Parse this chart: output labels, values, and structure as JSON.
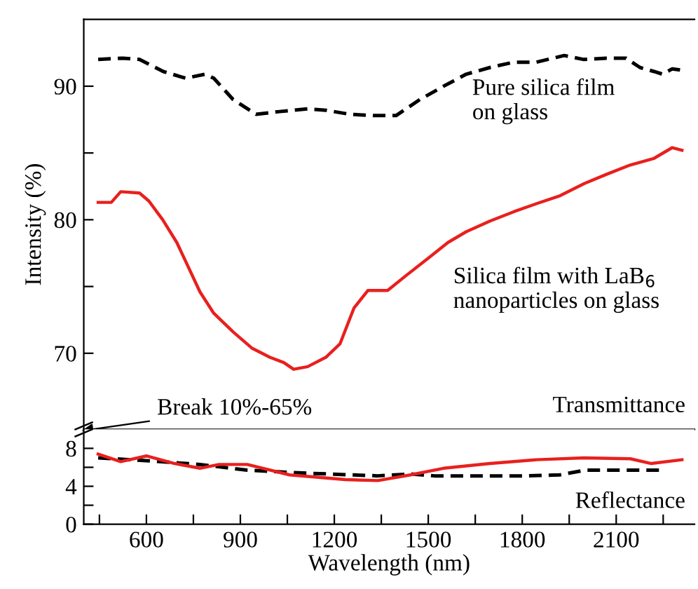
{
  "chart_data": [
    {
      "type": "line",
      "ylabel": "Intensity (%)",
      "xlim": [
        400,
        2350
      ],
      "ylim": [
        64.3,
        95
      ],
      "yticks": [
        {
          "value": 70,
          "label": "70"
        },
        {
          "value": 75,
          "label": null
        },
        {
          "value": 80,
          "label": "80"
        },
        {
          "value": 85,
          "label": null
        },
        {
          "value": 90,
          "label": "90"
        }
      ],
      "tick_labels": "y",
      "grid": false,
      "legend": false,
      "series": [
        {
          "color": "#000000",
          "line_style": "dashed",
          "x": [
            446,
            524,
            578,
            654,
            725,
            788,
            815,
            877,
            950,
            1025,
            1115,
            1173,
            1249,
            1325,
            1397,
            1473,
            1549,
            1621,
            1697,
            1773,
            1845,
            1934,
            1997,
            2069,
            2131,
            2176,
            2221,
            2248,
            2279,
            2310
          ],
          "values": [
            92.0,
            92.1,
            92.0,
            91.1,
            90.6,
            90.9,
            90.6,
            89.0,
            87.9,
            88.1,
            88.3,
            88.2,
            87.9,
            87.8,
            87.8,
            89.0,
            90.0,
            90.9,
            91.4,
            91.8,
            91.8,
            92.3,
            92.0,
            92.1,
            92.1,
            91.4,
            91.1,
            90.9,
            91.3,
            91.2
          ]
        },
        {
          "color": "#e8201e",
          "line_style": "solid",
          "x": [
            446,
            488,
            518,
            578,
            608,
            652,
            697,
            725,
            771,
            815,
            877,
            936,
            994,
            1039,
            1070,
            1115,
            1173,
            1218,
            1263,
            1307,
            1370,
            1428,
            1504,
            1563,
            1621,
            1697,
            1773,
            1845,
            1921,
            1997,
            2069,
            2145,
            2221,
            2279,
            2310
          ],
          "values": [
            81.3,
            81.3,
            82.1,
            82.0,
            81.4,
            80.0,
            78.3,
            76.9,
            74.6,
            73.0,
            71.6,
            70.4,
            69.7,
            69.3,
            68.8,
            69.0,
            69.7,
            70.7,
            73.4,
            74.7,
            74.7,
            75.8,
            77.2,
            78.3,
            79.1,
            79.9,
            80.6,
            81.2,
            81.8,
            82.7,
            83.4,
            84.1,
            84.6,
            85.4,
            85.2
          ]
        }
      ],
      "annotations": [
        "Pure silica film\non glass",
        "Silica film with LaB$_{6}$\nnanoparticles on glass",
        "Break 10%-65%",
        "Transmittance"
      ]
    },
    {
      "type": "line",
      "xlabel": "Wavelength (nm)",
      "xlim": [
        400,
        2350
      ],
      "ylim": [
        0,
        10
      ],
      "yticks": [
        0,
        {
          "value": 2,
          "label": null
        },
        4,
        {
          "value": 6,
          "label": null
        },
        8
      ],
      "xticks": [
        {
          "value": 450,
          "label": null
        },
        600,
        {
          "value": 750,
          "label": null
        },
        900,
        {
          "value": 1050,
          "label": null
        },
        1200,
        {
          "value": 1350,
          "label": null
        },
        1500,
        {
          "value": 1650,
          "label": null
        },
        1800,
        {
          "value": 1950,
          "label": null
        },
        2100,
        {
          "value": 2250,
          "label": null
        }
      ],
      "grid": false,
      "legend": false,
      "series": [
        {
          "color": "#000000",
          "line_style": "dashed",
          "x": [
            446,
            600,
            771,
            922,
            1100,
            1339,
            1443,
            1520,
            1800,
            1920,
            2000,
            2250
          ],
          "values": [
            7.0,
            6.7,
            6.3,
            5.7,
            5.4,
            5.1,
            5.3,
            5.1,
            5.1,
            5.2,
            5.7,
            5.7
          ]
        },
        {
          "color": "#e8201e",
          "line_style": "solid",
          "x": [
            446,
            518,
            600,
            690,
            771,
            832,
            922,
            1057,
            1236,
            1339,
            1443,
            1549,
            1697,
            1845,
            1997,
            2145,
            2212,
            2310
          ],
          "values": [
            7.4,
            6.6,
            7.2,
            6.4,
            5.9,
            6.3,
            6.3,
            5.2,
            4.7,
            4.6,
            5.2,
            5.9,
            6.4,
            6.8,
            7.0,
            6.9,
            6.4,
            6.8
          ]
        }
      ],
      "annotations": [
        "Reflectance"
      ]
    }
  ]
}
